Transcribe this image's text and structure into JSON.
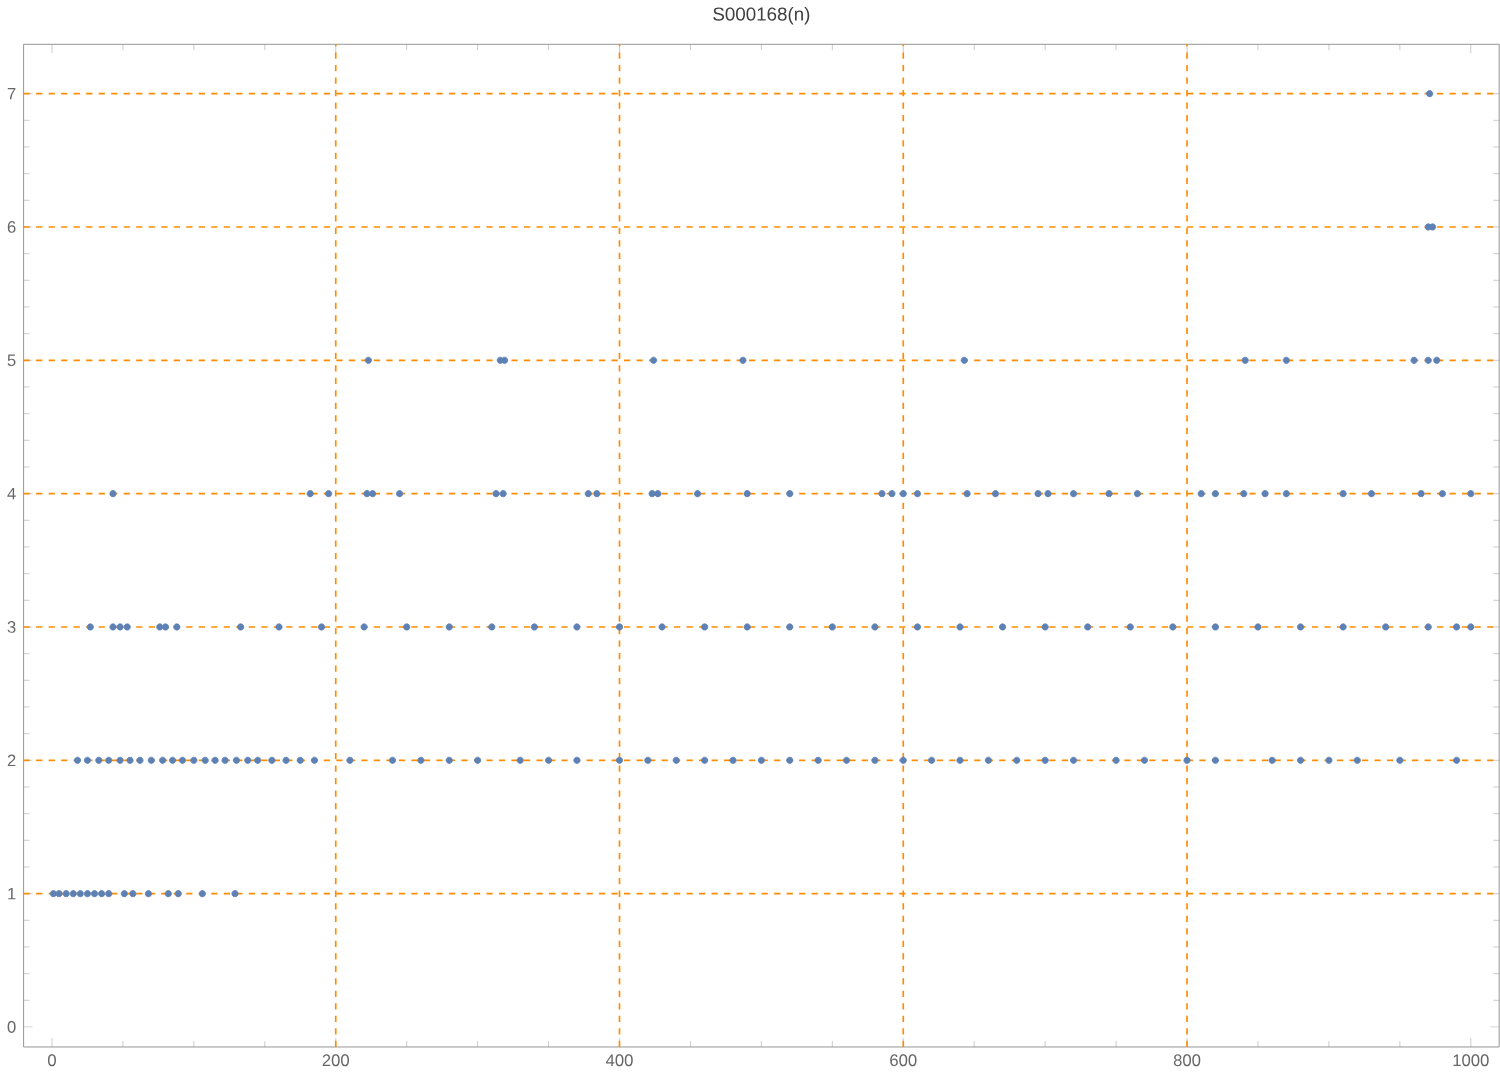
{
  "chart_data": {
    "type": "scatter",
    "title": "S000168(n)",
    "xlim": [
      -20,
      1020
    ],
    "ylim": [
      -0.15,
      7.37
    ],
    "xticks": [
      0,
      200,
      400,
      600,
      800,
      1000
    ],
    "yticks": [
      0,
      1,
      2,
      3,
      4,
      5,
      6,
      7
    ],
    "marker": "circle",
    "ref_lines": [
      {
        "axis": "x",
        "value": 200,
        "color": "#ff8c00",
        "line_style": "dashed"
      },
      {
        "axis": "x",
        "value": 400,
        "color": "#ff8c00",
        "line_style": "dashed"
      },
      {
        "axis": "x",
        "value": 600,
        "color": "#ff8c00",
        "line_style": "dashed"
      },
      {
        "axis": "x",
        "value": 800,
        "color": "#ff8c00",
        "line_style": "dashed"
      },
      {
        "axis": "y",
        "value": 1,
        "color": "#ff8c00",
        "line_style": "dashed"
      },
      {
        "axis": "y",
        "value": 2,
        "color": "#ff8c00",
        "line_style": "dashed"
      },
      {
        "axis": "y",
        "value": 3,
        "color": "#ff8c00",
        "line_style": "dashed"
      },
      {
        "axis": "y",
        "value": 4,
        "color": "#ff8c00",
        "line_style": "dashed"
      },
      {
        "axis": "y",
        "value": 5,
        "color": "#ff8c00",
        "line_style": "dashed"
      },
      {
        "axis": "y",
        "value": 6,
        "color": "#ff8c00",
        "line_style": "dashed"
      },
      {
        "axis": "y",
        "value": 7,
        "color": "#ff8c00",
        "line_style": "dashed"
      }
    ],
    "series": [
      {
        "color": "#5e81b5",
        "x": [
          1,
          5,
          10,
          15,
          20,
          25,
          30,
          35,
          40,
          51,
          57,
          68,
          82,
          89,
          106,
          129,
          18,
          25,
          33,
          40,
          48,
          55,
          62,
          70,
          78,
          85,
          92,
          100,
          108,
          115,
          122,
          130,
          138,
          145,
          155,
          165,
          175,
          185,
          210,
          240,
          260,
          280,
          300,
          330,
          350,
          370,
          400,
          420,
          440,
          460,
          480,
          500,
          520,
          540,
          560,
          580,
          600,
          620,
          640,
          660,
          680,
          700,
          720,
          750,
          770,
          800,
          820,
          860,
          880,
          900,
          920,
          950,
          990,
          27,
          43,
          48,
          53,
          76,
          80,
          88,
          133,
          160,
          190,
          220,
          250,
          280,
          310,
          340,
          370,
          400,
          430,
          460,
          490,
          520,
          550,
          580,
          610,
          640,
          670,
          700,
          730,
          760,
          790,
          820,
          850,
          880,
          910,
          940,
          970,
          990,
          1000,
          43,
          182,
          195,
          222,
          226,
          245,
          313,
          318,
          378,
          384,
          423,
          427,
          455,
          490,
          520,
          585,
          592,
          600,
          610,
          645,
          665,
          695,
          702,
          720,
          745,
          765,
          810,
          820,
          840,
          855,
          870,
          910,
          930,
          965,
          980,
          1000,
          223,
          316,
          319,
          424,
          487,
          643,
          841,
          870,
          960,
          970,
          976,
          970,
          973,
          971
        ],
        "values": [
          1,
          1,
          1,
          1,
          1,
          1,
          1,
          1,
          1,
          1,
          1,
          1,
          1,
          1,
          1,
          1,
          2,
          2,
          2,
          2,
          2,
          2,
          2,
          2,
          2,
          2,
          2,
          2,
          2,
          2,
          2,
          2,
          2,
          2,
          2,
          2,
          2,
          2,
          2,
          2,
          2,
          2,
          2,
          2,
          2,
          2,
          2,
          2,
          2,
          2,
          2,
          2,
          2,
          2,
          2,
          2,
          2,
          2,
          2,
          2,
          2,
          2,
          2,
          2,
          2,
          2,
          2,
          2,
          2,
          2,
          2,
          2,
          2,
          3,
          3,
          3,
          3,
          3,
          3,
          3,
          3,
          3,
          3,
          3,
          3,
          3,
          3,
          3,
          3,
          3,
          3,
          3,
          3,
          3,
          3,
          3,
          3,
          3,
          3,
          3,
          3,
          3,
          3,
          3,
          3,
          3,
          3,
          3,
          3,
          3,
          3,
          4,
          4,
          4,
          4,
          4,
          4,
          4,
          4,
          4,
          4,
          4,
          4,
          4,
          4,
          4,
          4,
          4,
          4,
          4,
          4,
          4,
          4,
          4,
          4,
          4,
          4,
          4,
          4,
          4,
          4,
          4,
          4,
          4,
          4,
          4,
          4,
          5,
          5,
          5,
          5,
          5,
          5,
          5,
          5,
          5,
          5,
          5,
          6,
          6,
          7
        ]
      }
    ]
  }
}
